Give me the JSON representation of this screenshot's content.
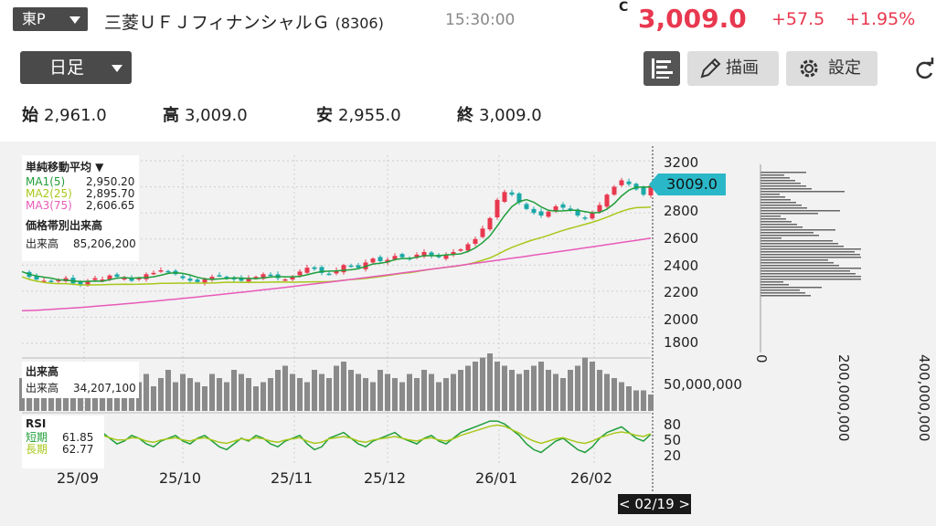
{
  "header": {
    "market": "東P",
    "stock_name": "三菱ＵＦＪフィナンシャルＧ",
    "code": "(8306)",
    "time": "15:30:00",
    "price_flag": "C",
    "price": "3,009.0",
    "change": "+57.5",
    "change_pct": "+1.95%",
    "up_color": "#e8384f"
  },
  "toolbar": {
    "period": "日足",
    "list_icon": "list-icon",
    "draw_label": "描画",
    "settings_label": "設定",
    "refresh_icon": "refresh-icon"
  },
  "ohlc": {
    "open_label": "始",
    "open": "2,961.0",
    "high_label": "高",
    "high": "3,009.0",
    "low_label": "安",
    "low": "2,955.0",
    "close_label": "終",
    "close": "3,009.0"
  },
  "legend": {
    "ma_title": "単純移動平均 ▼",
    "ma": [
      {
        "name": "MA1(5)",
        "value": "2,950.20",
        "color": "#1f9e3a"
      },
      {
        "name": "MA2(25)",
        "value": "2,895.70",
        "color": "#a8c81a"
      },
      {
        "name": "MA3(75)",
        "value": "2,606.65",
        "color": "#e85ab8"
      }
    ],
    "vp_title": "価格帯別出来高",
    "vp_label": "出来高",
    "vp_value": "85,206,200",
    "vol_title": "出来高",
    "vol_label": "出来高",
    "vol_value": "34,207,100",
    "rsi_title": "RSI",
    "rsi": [
      {
        "name": "短期",
        "value": "61.85",
        "color": "#1f9e3a"
      },
      {
        "name": "長期",
        "value": "62.77",
        "color": "#a8c81a"
      }
    ]
  },
  "chart_data": {
    "type": "candlestick",
    "price_axis_ticks": [
      "3200",
      "3000",
      "2800",
      "2600",
      "2400",
      "2200",
      "2000",
      "1800"
    ],
    "x_ticks": [
      "25/09",
      "25/10",
      "25/11",
      "25/12",
      "26/01",
      "26/02"
    ],
    "volume_axis_tick": "50,000,000",
    "rsi_axis_ticks": [
      "80",
      "50",
      "20"
    ],
    "volume_profile_ticks": [
      "0",
      "200,000,000",
      "400,000,000"
    ],
    "current_price_label": "3009.0",
    "cursor_date": "< 02/19 >",
    "ylim": [
      1750,
      3250
    ],
    "close_series": [
      2350,
      2310,
      2290,
      2280,
      2270,
      2285,
      2300,
      2260,
      2250,
      2280,
      2300,
      2290,
      2320,
      2310,
      2300,
      2280,
      2300,
      2330,
      2340,
      2360,
      2350,
      2330,
      2300,
      2280,
      2270,
      2290,
      2310,
      2320,
      2300,
      2290,
      2280,
      2300,
      2310,
      2330,
      2320,
      2300,
      2290,
      2310,
      2350,
      2380,
      2370,
      2340,
      2330,
      2360,
      2400,
      2390,
      2380,
      2420,
      2450,
      2430,
      2440,
      2470,
      2460,
      2450,
      2480,
      2500,
      2470,
      2460,
      2480,
      2500,
      2520,
      2560,
      2600,
      2680,
      2760,
      2900,
      2960,
      2940,
      2880,
      2830,
      2800,
      2780,
      2810,
      2850,
      2840,
      2820,
      2780,
      2760,
      2800,
      2860,
      2940,
      3000,
      3050,
      3020,
      2980,
      2940,
      3009
    ],
    "ma3_range": [
      2050,
      2606.65
    ],
    "volume_bars": [
      40,
      55,
      30,
      45,
      35,
      50,
      40,
      35,
      55,
      60,
      40,
      50,
      45,
      35,
      40,
      55,
      35,
      45,
      30,
      40,
      50,
      35,
      45,
      40,
      35,
      30,
      45,
      40,
      35,
      50,
      45,
      40,
      30,
      35,
      40,
      50,
      55,
      45,
      40,
      35,
      50,
      45,
      40,
      55,
      60,
      50,
      45,
      40,
      35,
      50,
      45,
      40,
      35,
      45,
      40,
      50,
      45,
      35,
      40,
      45,
      50,
      55,
      60,
      65,
      70,
      60,
      55,
      50,
      45,
      50,
      55,
      60,
      50,
      45,
      40,
      50,
      55,
      65,
      60,
      50,
      45,
      40,
      35,
      30,
      25,
      25,
      20
    ],
    "rsi_short": [
      50,
      45,
      40,
      55,
      60,
      50,
      45,
      60,
      55,
      50,
      70,
      65,
      55,
      45,
      50,
      60,
      55,
      45,
      40,
      50,
      55,
      60,
      50,
      45,
      55,
      60,
      50,
      40,
      35,
      45,
      55,
      50,
      60,
      55,
      45,
      40,
      50,
      55,
      60,
      45,
      35,
      40,
      55,
      60,
      65,
      55,
      45,
      40,
      50,
      55,
      60,
      65,
      55,
      50,
      45,
      55,
      60,
      50,
      45,
      55,
      65,
      70,
      75,
      80,
      85,
      85,
      80,
      70,
      60,
      45,
      35,
      30,
      40,
      50,
      55,
      45,
      35,
      30,
      40,
      55,
      65,
      70,
      75,
      65,
      55,
      50,
      62
    ],
    "rsi_long": [
      52,
      50,
      48,
      52,
      55,
      52,
      50,
      55,
      54,
      52,
      60,
      60,
      56,
      52,
      52,
      56,
      55,
      50,
      48,
      52,
      54,
      56,
      52,
      50,
      54,
      56,
      52,
      48,
      46,
      50,
      54,
      52,
      56,
      54,
      50,
      48,
      52,
      54,
      56,
      50,
      46,
      48,
      54,
      56,
      58,
      55,
      50,
      48,
      52,
      54,
      56,
      58,
      55,
      52,
      50,
      54,
      56,
      52,
      50,
      54,
      60,
      64,
      68,
      72,
      76,
      78,
      76,
      70,
      64,
      56,
      50,
      46,
      50,
      54,
      56,
      52,
      48,
      46,
      50,
      56,
      60,
      64,
      66,
      64,
      60,
      58,
      63
    ]
  }
}
